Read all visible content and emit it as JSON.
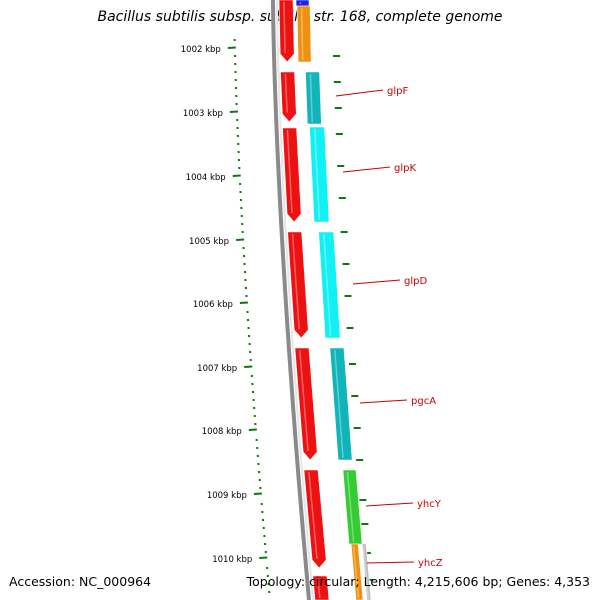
{
  "title": "Bacillus subtilis subsp. subtilis str. 168, complete genome",
  "accession": "Accession: NC_000964",
  "summary": "Topology: circular; Length: 4,215,606 bp; Genes: 4,353",
  "kbp_labels": [
    "1002 kbp",
    "1003 kbp",
    "1004 kbp",
    "1005 kbp",
    "1006 kbp",
    "1007 kbp",
    "1008 kbp",
    "1009 kbp",
    "1010 kbp"
  ],
  "gene_labels": [
    "glpF",
    "glpK",
    "glpD",
    "pgcA",
    "yhcY",
    "yhcZ"
  ],
  "colors": {
    "tick": "#0a7a0a",
    "backbone": "#7a7a7a",
    "cds": "#ee1111",
    "gene_label": "#cc0000",
    "glpF": "#10b4bb",
    "glpK": "#11f0f4",
    "glpD": "#11f0f4",
    "pgcA": "#10b4bb",
    "yhcY": "#33cc33",
    "yhcZ": "#f09010",
    "top_orange": "#f09010",
    "top_blue": "#2222dd"
  }
}
